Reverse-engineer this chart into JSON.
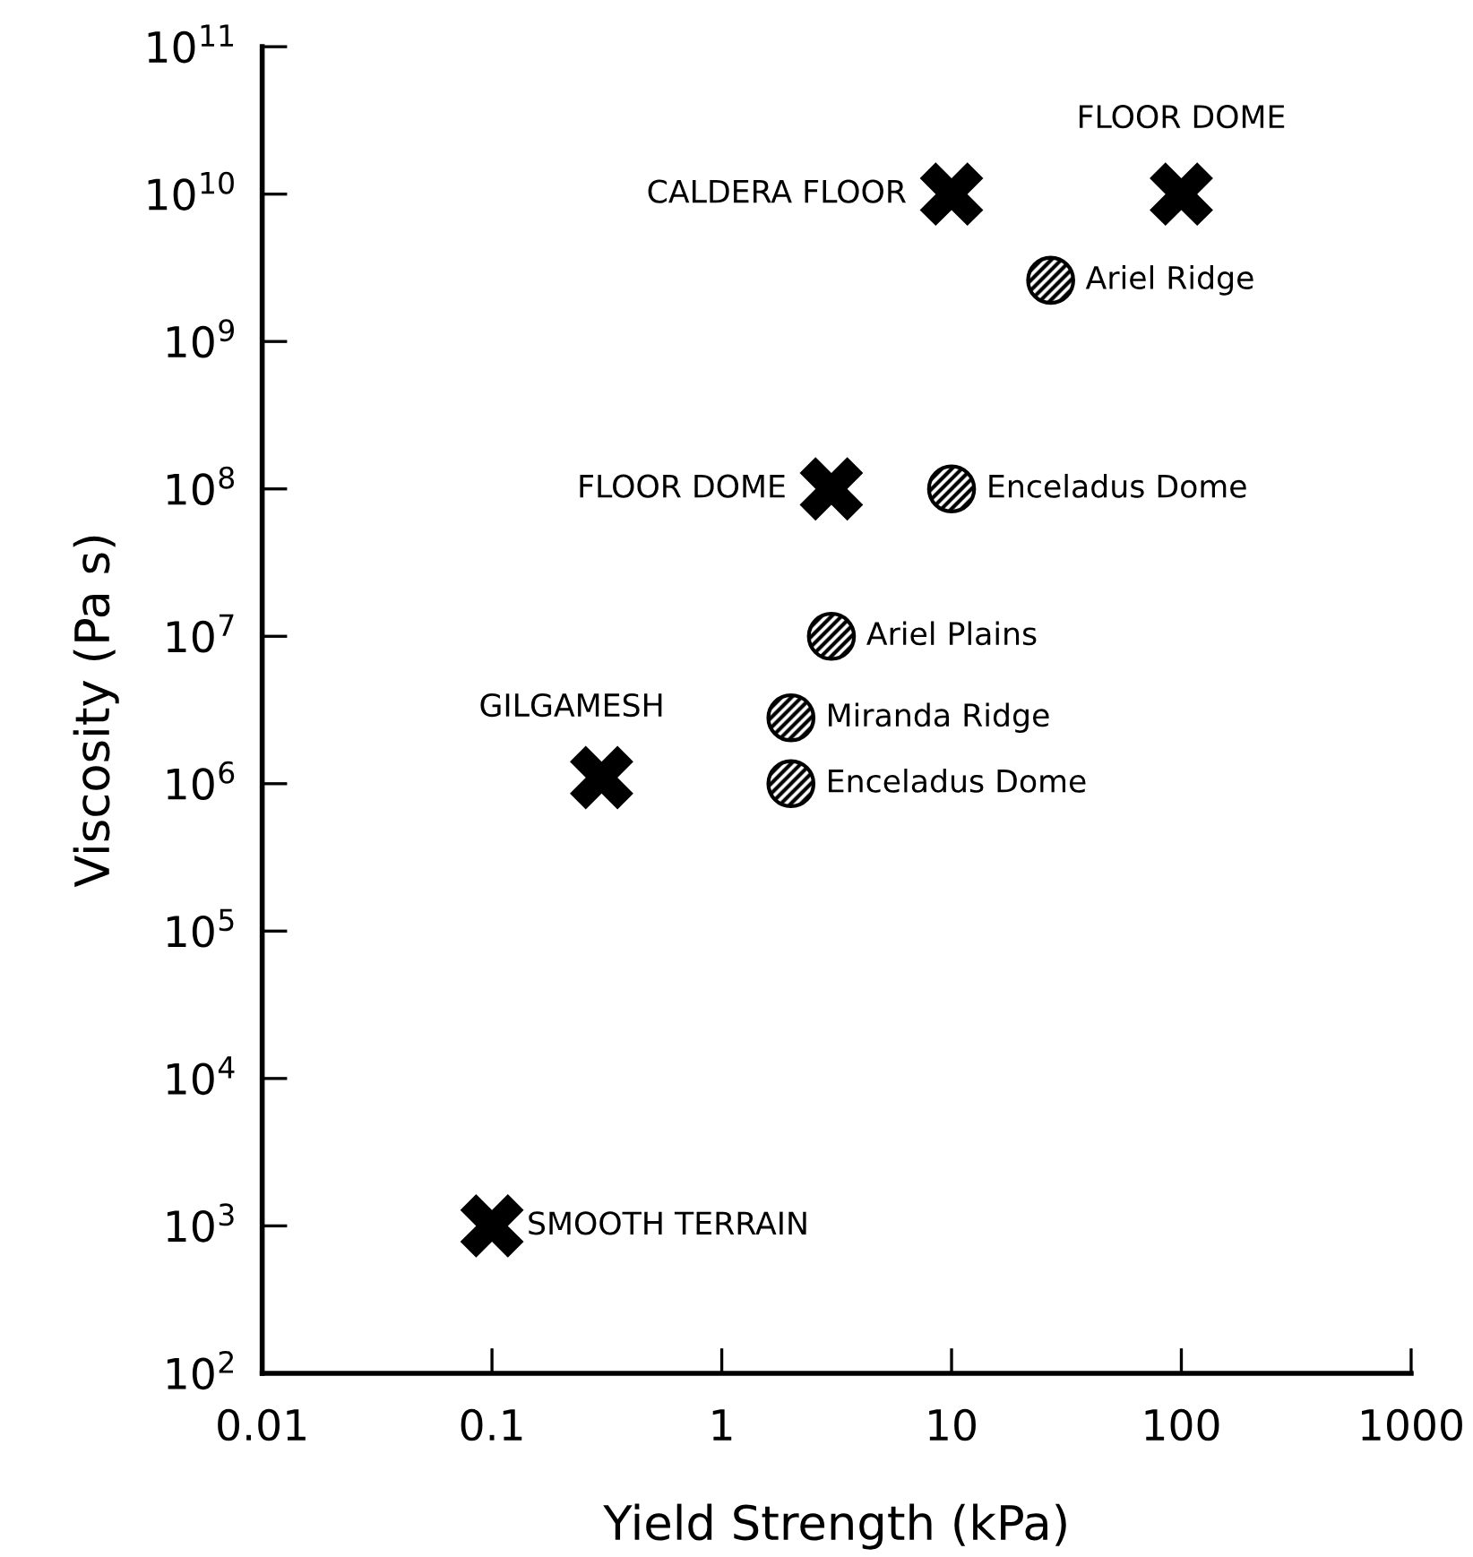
{
  "chart_data": {
    "type": "scatter",
    "xlabel": "Yield Strength (kPa)",
    "ylabel": "Viscosity (Pa s)",
    "log": "xy",
    "series": [
      {
        "color": "#000000",
        "marker": "cross",
        "x": [
          10,
          100,
          3,
          0.3,
          0.1
        ],
        "values": [
          10000000000.0,
          10000000000.0,
          100000000.0,
          1100000.0,
          1000.0
        ]
      },
      {
        "color": "#000000",
        "marker": "circle",
        "x": [
          27,
          10,
          3,
          2,
          2
        ],
        "values": [
          2600000000.0,
          100000000.0,
          10000000.0,
          2800000.0,
          1000000.0
        ]
      }
    ],
    "annotations": [
      {
        "text": "CALDERA FLOOR",
        "x": 10,
        "y": 10000000000.0
      },
      {
        "text": "FLOOR DOME",
        "x": 100,
        "y": 10000000000.0
      },
      {
        "text": "Ariel Ridge",
        "x": 27,
        "y": 2600000000.0
      },
      {
        "text": "FLOOR DOME",
        "x": 3,
        "y": 100000000.0
      },
      {
        "text": "Enceladus Dome",
        "x": 10,
        "y": 100000000.0
      },
      {
        "text": "Ariel Plains",
        "x": 3,
        "y": 10000000.0
      },
      {
        "text": "GILGAMESH",
        "x": 0.3,
        "y": 1100000.0
      },
      {
        "text": "Miranda Ridge",
        "x": 2,
        "y": 2800000.0
      },
      {
        "text": "Enceladus Dome",
        "x": 2,
        "y": 1000000.0
      },
      {
        "text": "SMOOTH TERRAIN",
        "x": 0.1,
        "y": 1000.0
      }
    ],
    "xlim": [
      0.01,
      1000
    ],
    "xticks": [
      0.01,
      0.1,
      1,
      10,
      100,
      1000
    ],
    "ylim": [
      100,
      100000000000.0
    ],
    "yticks": [
      {
        "value": 100,
        "label": "10$^{2}$"
      },
      {
        "value": 1000,
        "label": "10$^{3}$"
      },
      {
        "value": 10000,
        "label": "10$^{4}$"
      },
      {
        "value": 100000,
        "label": "10$^{5}$"
      },
      {
        "value": 1000000,
        "label": "10$^{6}$"
      },
      {
        "value": 10000000,
        "label": "10$^{7}$"
      },
      {
        "value": 100000000,
        "label": "10$^{8}$"
      },
      {
        "value": 1000000000,
        "label": "10$^{9}$"
      },
      {
        "value": 10000000000,
        "label": "10$^{10}$"
      },
      {
        "value": 100000000000,
        "label": "10$^{11}$"
      }
    ],
    "grid": false,
    "legend": false
  }
}
